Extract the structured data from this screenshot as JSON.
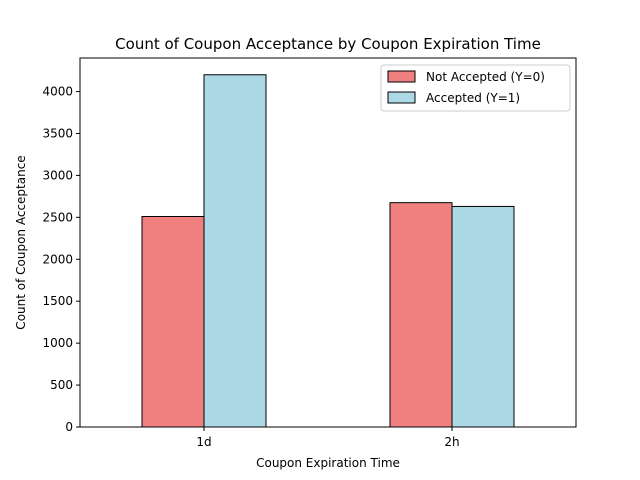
{
  "chart_data": {
    "type": "bar",
    "title": "Count of Coupon Acceptance by Coupon Expiration Time",
    "xlabel": "Coupon Expiration Time",
    "ylabel": "Count of Coupon Acceptance",
    "categories": [
      "1d",
      "2h"
    ],
    "series": [
      {
        "name": "Not Accepted (Y=0)",
        "values": [
          2510,
          2675
        ],
        "color": "#f08080"
      },
      {
        "name": "Accepted (Y=1)",
        "values": [
          4200,
          2630
        ],
        "color": "#add8e6"
      }
    ],
    "ylim": [
      0,
      4400
    ],
    "yticks": [
      0,
      500,
      1000,
      1500,
      2000,
      2500,
      3000,
      3500,
      4000
    ],
    "ytick_labels": [
      "0",
      "500",
      "1000",
      "1500",
      "2000",
      "2500",
      "3000",
      "3500",
      "4000"
    ],
    "grid": false,
    "legend_position": "top-right",
    "edge_color": "#000000"
  }
}
